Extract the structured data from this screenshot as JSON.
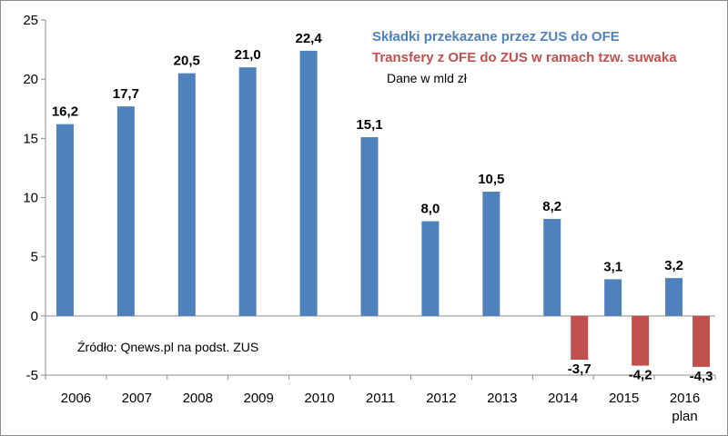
{
  "chart_data": {
    "type": "bar",
    "categories": [
      "2006",
      "2007",
      "2008",
      "2009",
      "2010",
      "2011",
      "2012",
      "2013",
      "2014",
      "2015",
      "2016"
    ],
    "category_sublabels": [
      "",
      "",
      "",
      "",
      "",
      "",
      "",
      "",
      "",
      "",
      "plan"
    ],
    "series": [
      {
        "name": "Składki przekazane przez ZUS do OFE",
        "color": "#4f81bd",
        "values": [
          16.2,
          17.7,
          20.5,
          21.0,
          22.4,
          15.1,
          8.0,
          10.5,
          8.2,
          3.1,
          3.2
        ],
        "labels": [
          "16,2",
          "17,7",
          "20,5",
          "21,0",
          "22,4",
          "15,1",
          "8,0",
          "10,5",
          "8,2",
          "3,1",
          "3,2"
        ]
      },
      {
        "name": "Transfery z OFE do ZUS w ramach tzw. suwaka",
        "color": "#c0504d",
        "values": [
          null,
          null,
          null,
          null,
          null,
          null,
          null,
          null,
          -3.7,
          -4.2,
          -4.3
        ],
        "labels": [
          "",
          "",
          "",
          "",
          "",
          "",
          "",
          "",
          "-3,7",
          "-4,2",
          "-4,3"
        ]
      }
    ],
    "note": "Dane w mld zł",
    "source": "Źródło: Qnews.pl na podst. ZUS",
    "ylim": [
      -5,
      25
    ],
    "yticks": [
      -5,
      0,
      5,
      10,
      15,
      20,
      25
    ],
    "title": "",
    "xlabel": "",
    "ylabel": "",
    "grid": false,
    "legend_position": "top-right"
  }
}
